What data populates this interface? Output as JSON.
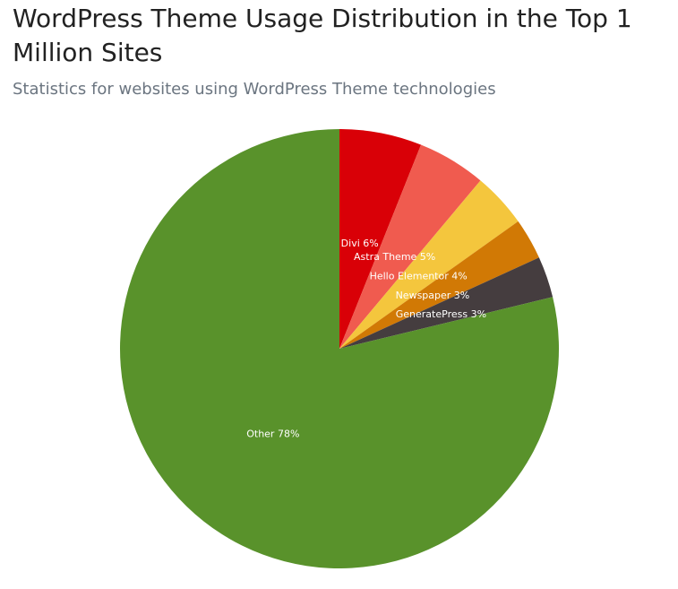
{
  "chart_data": {
    "type": "pie",
    "title": "WordPress Theme Usage Distribution in the Top 1 Million Sites",
    "subtitle": "Statistics for websites using WordPress Theme technologies",
    "slices": [
      {
        "label": "Divi",
        "value": 6,
        "text": "Divi 6%",
        "color": "#d90007"
      },
      {
        "label": "Astra Theme",
        "value": 5,
        "text": "Astra Theme 5%",
        "color": "#f05b4f"
      },
      {
        "label": "Hello Elementor",
        "value": 4,
        "text": "Hello Elementor 4%",
        "color": "#f4c63d"
      },
      {
        "label": "Newspaper",
        "value": 3,
        "text": "Newspaper 3%",
        "color": "#d17905"
      },
      {
        "label": "GeneratePress",
        "value": 3,
        "text": "GeneratePress 3%",
        "color": "#453d3f"
      },
      {
        "label": "Other",
        "value": 78,
        "text": "Other 78%",
        "color": "#59922b"
      }
    ]
  }
}
